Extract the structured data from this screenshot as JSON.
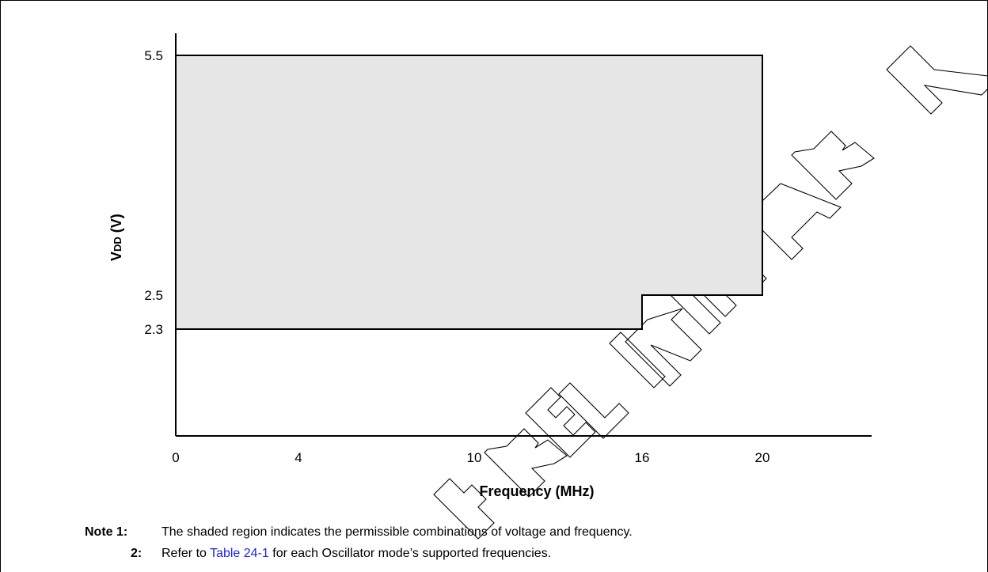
{
  "chart_data": {
    "type": "area",
    "title": "",
    "xlabel": "Frequency (MHz)",
    "ylabel": "VDD (V)",
    "ylabel_main": "V",
    "ylabel_sub": "DD",
    "ylabel_unit": " (V)",
    "x_ticks": [
      0,
      4,
      10,
      16,
      20
    ],
    "x_tick_labels": [
      "0",
      "4",
      "10",
      "16",
      "20"
    ],
    "y_ticks": [
      2.3,
      2.5,
      5.5
    ],
    "y_tick_labels": [
      "2.3",
      "2.5",
      "5.5"
    ],
    "region": {
      "name": "permissible operating region",
      "boundary": [
        [
          0,
          2.3
        ],
        [
          16,
          2.3
        ],
        [
          16,
          2.5
        ],
        [
          20,
          2.5
        ],
        [
          20,
          5.5
        ],
        [
          0,
          5.5
        ]
      ]
    },
    "fill_color": "#e6e6e6",
    "grid": false
  },
  "watermark": "PRELIMINARY",
  "notes": {
    "label1": "Note 1:",
    "text1": "The shaded region indicates the permissible combinations of voltage and frequency.",
    "label2": "2:",
    "text2_pre": "Refer to ",
    "text2_link": "Table 24-1",
    "text2_post": " for each Oscillator mode’s supported frequencies."
  }
}
